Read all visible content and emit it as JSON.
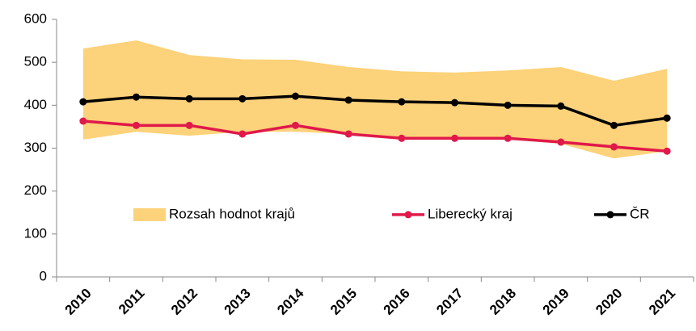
{
  "chart_data": {
    "type": "line",
    "categories": [
      "2010",
      "2011",
      "2012",
      "2013",
      "2014",
      "2015",
      "2016",
      "2017",
      "2018",
      "2019",
      "2020",
      "2021"
    ],
    "series": [
      {
        "name": "Rozsah hodnot krajů",
        "type": "range",
        "color": "#fcd27a",
        "high": [
          532,
          551,
          517,
          507,
          506,
          489,
          479,
          476,
          481,
          489,
          457,
          485
        ],
        "low": [
          320,
          338,
          329,
          338,
          338,
          333,
          325,
          325,
          321,
          310,
          276,
          293
        ]
      },
      {
        "name": "Liberecký kraj",
        "color": "#e0194a",
        "values": [
          363,
          353,
          353,
          333,
          353,
          333,
          323,
          323,
          323,
          314,
          303,
          293
        ]
      },
      {
        "name": "ČR",
        "color": "#000000",
        "values": [
          408,
          419,
          415,
          415,
          421,
          412,
          408,
          406,
          400,
          398,
          353,
          370
        ]
      }
    ],
    "ylim": [
      0,
      600
    ],
    "yticks": [
      0,
      100,
      200,
      300,
      400,
      500,
      600
    ],
    "legend": "lower center"
  }
}
